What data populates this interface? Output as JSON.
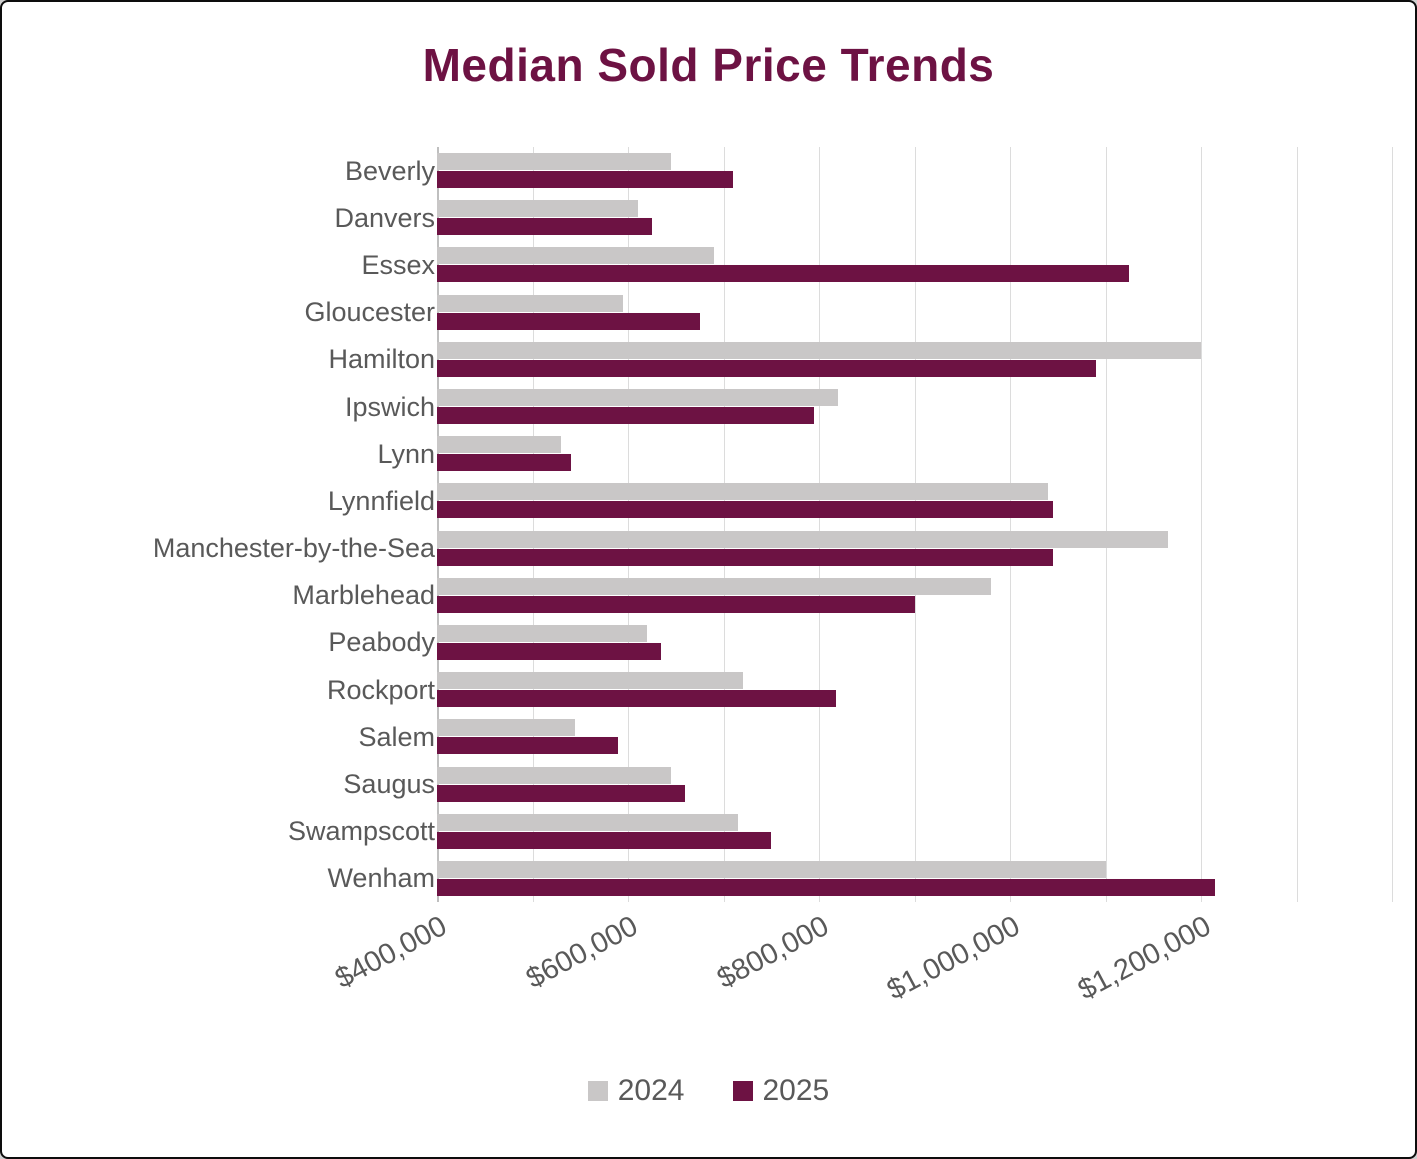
{
  "title": "Median Sold Price Trends",
  "colors": {
    "accent": "#6D1243",
    "series_2024": "#C9C7C7",
    "series_2025": "#6D1243",
    "axis_text": "#595959",
    "gridline": "#DCDCDC"
  },
  "chart_data": {
    "type": "bar",
    "orientation": "horizontal",
    "title": "Median Sold Price Trends",
    "xlabel": "",
    "ylabel": "",
    "grid": true,
    "legend_position": "bottom",
    "xlim": [
      400000,
      1400000
    ],
    "gridline_step": 100000,
    "xticks": [
      400000,
      600000,
      800000,
      1000000,
      1200000
    ],
    "xtick_labels": [
      "$400,000",
      "$600,000",
      "$800,000",
      "$1,000,000",
      "$1,200,000"
    ],
    "categories": [
      "Beverly",
      "Danvers",
      "Essex",
      "Gloucester",
      "Hamilton",
      "Ipswich",
      "Lynn",
      "Lynnfield",
      "Manchester-by-the-Sea",
      "Marblehead",
      "Peabody",
      "Rockport",
      "Salem",
      "Saugus",
      "Swampscott",
      "Wenham"
    ],
    "series": [
      {
        "name": "2024",
        "color": "#C9C7C7",
        "values": [
          645000,
          610000,
          690000,
          595000,
          1200000,
          820000,
          530000,
          1040000,
          1165000,
          980000,
          620000,
          720000,
          545000,
          645000,
          715000,
          1100000
        ]
      },
      {
        "name": "2025",
        "color": "#6D1243",
        "values": [
          710000,
          625000,
          1125000,
          675000,
          1090000,
          795000,
          540000,
          1045000,
          1045000,
          900000,
          635000,
          818000,
          590000,
          660000,
          750000,
          1215000
        ]
      }
    ]
  },
  "legend": {
    "items": [
      {
        "label": "2024",
        "color": "#C9C7C7"
      },
      {
        "label": "2025",
        "color": "#6D1243"
      }
    ]
  }
}
